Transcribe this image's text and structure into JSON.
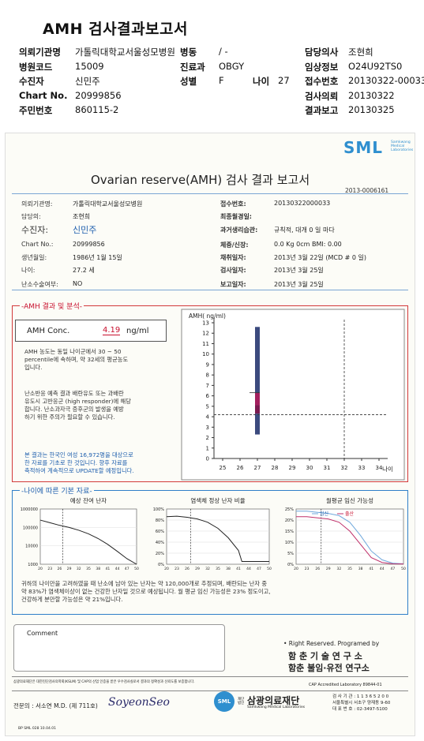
{
  "header": {
    "title": "AMH 검사결과보고서",
    "rows": [
      {
        "l1": "의뢰기관명",
        "v1": "가톨릭대학교서울성모병원",
        "l2": "병동",
        "v2": "/ -",
        "l3": "",
        "v3": "",
        "l4": "담당의사",
        "v4": "조현희"
      },
      {
        "l1": "병원코드",
        "v1": "15009",
        "l2": "진료과",
        "v2": "OBGY",
        "l3": "",
        "v3": "",
        "l4": "임상정보",
        "v4": "O24U92TS0"
      },
      {
        "l1": "수진자",
        "v1": "신민주",
        "l2": "성별",
        "v2": "F",
        "l3": "나이",
        "v3": "27",
        "l4": "접수번호",
        "v4": "20130322-00033"
      },
      {
        "l1": "Chart No.",
        "v1": "20999856",
        "l2": "",
        "v2": "",
        "l3": "",
        "v3": "",
        "l4": "검사의뢰",
        "v4": "20130322"
      },
      {
        "l1": "주민번호",
        "v1": "860115-2",
        "l2": "",
        "v2": "",
        "l3": "",
        "v3": "",
        "l4": "결과보고",
        "v4": "20130325"
      }
    ]
  },
  "report": {
    "logo": "SML",
    "logo_sub": [
      "Samkwang",
      "Medical",
      "Laboratories"
    ],
    "title": "Ovarian reserve(AMH) 검사 결과 보고서",
    "code": "2013-0006161",
    "left_info": [
      {
        "label": "의뢰기관명:",
        "value": "가톨릭대학교서울성모병원"
      },
      {
        "label": "담당의:",
        "value": "조현희"
      },
      {
        "label": "수진자:",
        "value": "신민주"
      },
      {
        "label": "Chart No.:",
        "value": "20999856"
      },
      {
        "label": "생년월일:",
        "value": "1986년 1월 15일"
      },
      {
        "label": "나이:",
        "value": "27.2 세"
      },
      {
        "label": "난소수술여부:",
        "value": "NO"
      }
    ],
    "right_info": [
      {
        "label": "접수번호:",
        "value": "20130322000033"
      },
      {
        "label": "최종월경일:",
        "value": ""
      },
      {
        "label": "과거생리습관:",
        "value": "규칙적, 대개  0 일 마다"
      },
      {
        "label": "체중/신장:",
        "value": "0.0 Kg      0cm   BMI:  0.00"
      },
      {
        "label": "채취일자:",
        "value": "2013년 3월 22일   (MCD # 0 일)"
      },
      {
        "label": "검사일자:",
        "value": "2013년 3월 25일"
      },
      {
        "label": "보고일자:",
        "value": "2013년 3월 25일"
      }
    ],
    "section1_title": "AMH 결과 및 분석",
    "amh_label": "AMH Conc.",
    "amh_value": "4.19",
    "amh_unit": "ng/ml",
    "para1": [
      "AMH 농도는 동일 나이군에서  30 ~ 50",
      "percentile에 속하며, 약  32세의 평균농도",
      "입니다."
    ],
    "para2": [
      "난소반응 예측 결과 배란유도 또는 과배란",
      "유도시 고반응군 (high responder)에 해당",
      "합니다. 난소과자극 증후군의 발생을 예방",
      "하기 위한 주의가 필요할 수 있습니다."
    ],
    "para3": [
      "본 결과는 한국인 여성 16,972명을 대상으로",
      "한 자료를 기초로 한 것입니다. 향후 자료를",
      "축적하여 계속적으로 UPDATE할 예정입니다."
    ],
    "section2_title": "나이에 따른 기본 자료",
    "chart_titles": [
      "예상 잔여 난자",
      "염색체 정상 난자 비율",
      "월평균 임신 가능성"
    ],
    "legend_pregnancy": [
      "임신",
      "출산"
    ],
    "summary": [
      "귀하의 나이만을 고려하였을 때 난소에 남아 있는 난자는 약  120,000개로 추정되며, 배란되는 난자 중",
      "약  83%가 염색체이상이 없는 건강한 난자일 것으로 예상됩니다. 월 평균 임신 가능성은 23% 정도이고,",
      "건강하게 분만할 가능성은 약  21%입니다."
    ],
    "comment_label": "Comment",
    "rights": "• Right Reserved. Programed by",
    "institute1": "함 춘  기 술  연 구 소",
    "institute2": "함춘 불임·유전 연구소",
    "footer_small": "삼광의료재단은 대한진단검사의학회(KSLM) 및 CAP의 산업 인증을 받은 우수검사실로서 결과의 정확성과 신뢰도를 보증합니다.",
    "cap": "CAP  Accredited  Laboratory  89844-01",
    "doctor": "전문의 : 서소연 M.D. (제 711호)",
    "signature": "SoyeonSeo",
    "foundation_small": "재단 법인",
    "foundation": "삼광의료재단",
    "foundation_en": "Samkwang Medical Laboratories",
    "contact": [
      "검 사 기 관 : 1 1 3 6 5 2 0 0",
      "서울특별시 서초구 양재동 9-60",
      "대 표 번 호 : 02-3497-5100"
    ],
    "form_code": "BP SML 028 10.04.01"
  },
  "chart_data": [
    {
      "type": "box",
      "title": "",
      "ylabel": "AMH( ng/ml)",
      "xlabel": "나이",
      "x_ticks": [
        25,
        26,
        27,
        28,
        29,
        30,
        31,
        32,
        33,
        34
      ],
      "y_ticks": [
        0,
        1,
        2,
        3,
        4,
        5,
        6,
        7,
        8,
        9,
        10,
        11,
        12,
        13
      ],
      "xlim": [
        24.5,
        34.5
      ],
      "ylim": [
        0,
        13
      ],
      "box": {
        "x": 27,
        "low": 2.3,
        "q1": 4.3,
        "median": 5.1,
        "q3": 6.3,
        "high": 12.6
      },
      "reference_value": 4.19,
      "reference_age": 32
    },
    {
      "type": "line",
      "title": "예상 잔여 난자",
      "y_scale": "log",
      "y_ticks": [
        1000,
        10000,
        100000,
        1000000
      ],
      "x_ticks": [
        20,
        23,
        26,
        29,
        32,
        35,
        38,
        41,
        44,
        47,
        50
      ],
      "marker_age": 27,
      "x": [
        20,
        23,
        26,
        29,
        32,
        35,
        38,
        41,
        44,
        47,
        50
      ],
      "y": [
        250000,
        180000,
        130000,
        100000,
        70000,
        45000,
        25000,
        12000,
        5000,
        2000,
        1000
      ]
    },
    {
      "type": "line",
      "title": "염색체 정상 난자 비율",
      "y_ticks": [
        "0%",
        "20%",
        "40%",
        "60%",
        "80%",
        "100%"
      ],
      "x_ticks": [
        20,
        23,
        26,
        29,
        32,
        35,
        38,
        41,
        44,
        47,
        50
      ],
      "marker_age": 27,
      "x": [
        20,
        23,
        26,
        29,
        32,
        35,
        38,
        41,
        42,
        44,
        47,
        50
      ],
      "y": [
        86,
        87,
        85,
        82,
        76,
        65,
        48,
        25,
        5,
        5,
        5,
        5
      ]
    },
    {
      "type": "line",
      "title": "월평균 임신 가능성",
      "y_ticks": [
        "0%",
        "5%",
        "10%",
        "15%",
        "20%",
        "25%"
      ],
      "x_ticks": [
        20,
        23,
        26,
        29,
        32,
        35,
        38,
        41,
        44,
        47,
        50
      ],
      "marker_age": 27,
      "series": [
        {
          "name": "임신",
          "x": [
            20,
            23,
            26,
            29,
            32,
            35,
            38,
            41,
            44,
            47,
            50
          ],
          "y": [
            24,
            24,
            23.5,
            23,
            22,
            19,
            13,
            6,
            2,
            0.5,
            0.2
          ]
        },
        {
          "name": "출산",
          "x": [
            20,
            23,
            26,
            29,
            32,
            35,
            38,
            41,
            44,
            47,
            50
          ],
          "y": [
            21.5,
            21.5,
            21,
            20.5,
            19,
            15,
            9,
            3,
            0.8,
            0.2,
            0.1
          ]
        }
      ]
    }
  ]
}
